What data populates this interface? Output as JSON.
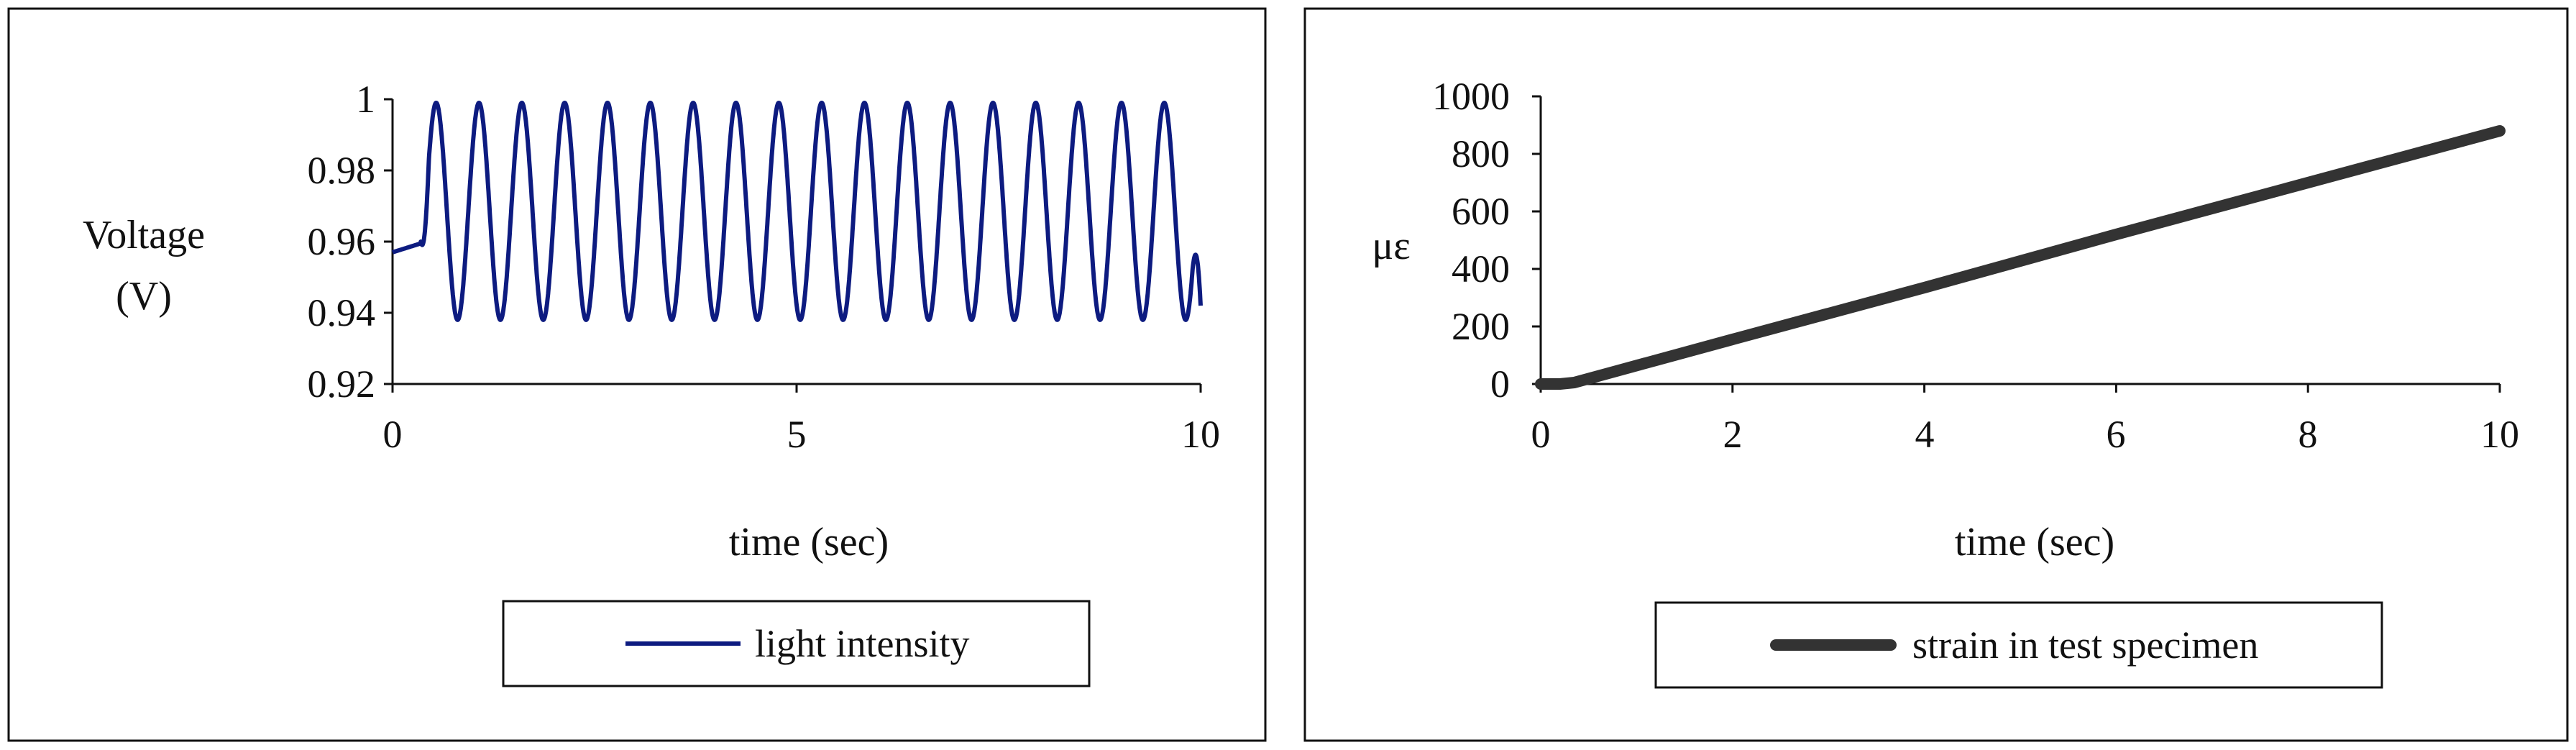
{
  "chart_data": [
    {
      "type": "line",
      "title": "",
      "xlabel": "time (sec)",
      "ylabel": [
        "Voltage",
        "(V)"
      ],
      "xlim": [
        0,
        10
      ],
      "ylim": [
        0.92,
        1.0
      ],
      "x_ticks": [
        "0",
        "5",
        "10"
      ],
      "y_ticks": [
        "0.92",
        "0.94",
        "0.96",
        "0.98",
        "1"
      ],
      "grid": false,
      "legend": "bottom",
      "series": [
        {
          "name": "light intensity",
          "color": "#0d1b80",
          "description_of_shape": "starts near 0.957, rises at ~0.35 s into a steady sinusoidal oscillation between ~0.938 and ~0.999",
          "start": {
            "x": 0,
            "y": 0.957
          },
          "oscillation": {
            "begin_x": 0.42,
            "first_peak_x": 0.54,
            "period": 0.53,
            "min": 0.938,
            "max": 0.999
          },
          "end": {
            "x": 10,
            "y": 0.942
          }
        }
      ]
    },
    {
      "type": "line",
      "title": "",
      "xlabel": "time (sec)",
      "ylabel": "με",
      "xlim": [
        0,
        10
      ],
      "ylim": [
        0,
        1000
      ],
      "x_ticks": [
        "0",
        "2",
        "4",
        "6",
        "8",
        "10"
      ],
      "y_ticks": [
        "0",
        "200",
        "400",
        "600",
        "800",
        "1000"
      ],
      "grid": false,
      "legend": "bottom",
      "series": [
        {
          "name": "strain in test specimen",
          "color": "#333333",
          "points": [
            {
              "x": 0,
              "y": 0
            },
            {
              "x": 0.2,
              "y": 0
            },
            {
              "x": 0.35,
              "y": 5
            },
            {
              "x": 2,
              "y": 155
            },
            {
              "x": 4,
              "y": 335
            },
            {
              "x": 6,
              "y": 520
            },
            {
              "x": 8,
              "y": 700
            },
            {
              "x": 10,
              "y": 880
            }
          ]
        }
      ]
    }
  ]
}
